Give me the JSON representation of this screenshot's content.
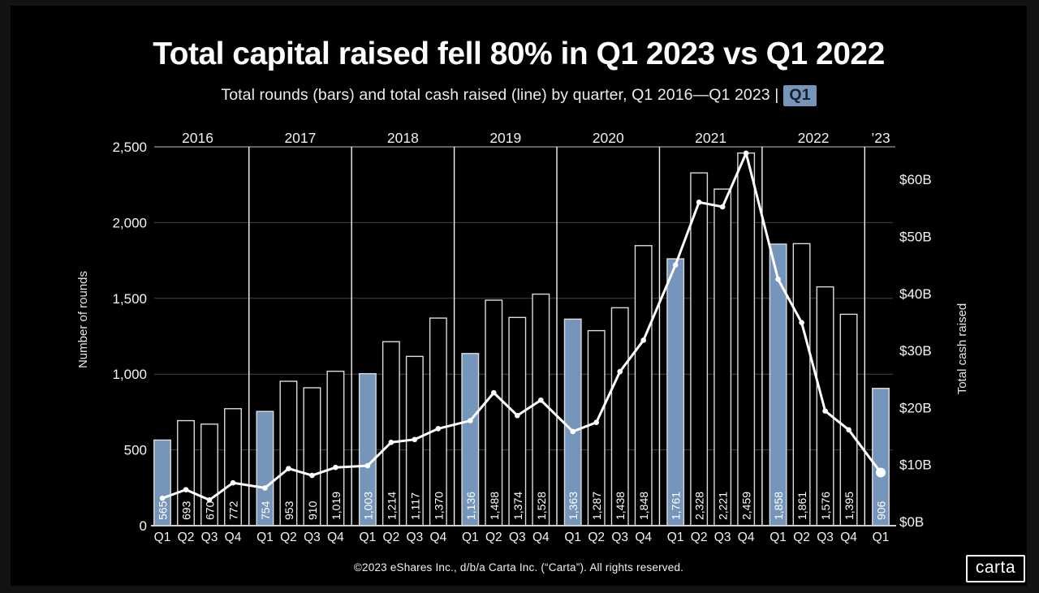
{
  "slide": {
    "title": "Total capital raised fell 80% in Q1 2023 vs Q1 2022",
    "subtitle_prefix": "Total rounds (bars) and total cash raised (line) by quarter, Q1 2016—Q1 2023 |",
    "subtitle_chip": "Q1",
    "footer": "©2023 eShares Inc., d/b/a Carta Inc. (“Carta”). All rights reserved.",
    "logo_text": "carta"
  },
  "colors": {
    "background": "#000000",
    "accent_blue": "#7695BA",
    "chip_text": "#15212F",
    "line": "#FFFFFF",
    "bar_fill": "#000000",
    "bar_stroke": "#DCDCDC",
    "gridline": "#454545",
    "top_gridline": "#9A9A9A",
    "separator": "#F5F5F5",
    "baseline": "#D0D0D0",
    "tick_text": "#F5F5F5",
    "axis_title_text": "#E5E5E5"
  },
  "chart_data": {
    "type": "bar+line",
    "title": "Total capital raised fell 80% in Q1 2023 vs Q1 2022",
    "subtitle": "Total rounds (bars) and total cash raised (line) by quarter, Q1 2016—Q1 2023",
    "highlighted_quarter": "Q1",
    "legend_position": "none",
    "left_axis": {
      "label": "Number of rounds",
      "ticks": [
        "0",
        "500",
        "1,000",
        "1,500",
        "2,000",
        "2,500"
      ],
      "range": [
        0,
        2500
      ],
      "grid": true
    },
    "right_axis": {
      "label": "Total cash raised",
      "ticks": [
        "$0B",
        "$10B",
        "$20B",
        "$30B",
        "$40B",
        "$50B",
        "$60B"
      ],
      "range": [
        0,
        60
      ]
    },
    "series": [
      {
        "name": "Total rounds",
        "type": "bar"
      },
      {
        "name": "Total cash raised",
        "type": "line",
        "unit": "$B"
      }
    ],
    "years": [
      {
        "label": "2016",
        "quarters": [
          {
            "label": "Q1",
            "rounds": 565,
            "rounds_label": "565",
            "cash_b": 4.1,
            "highlight": true
          },
          {
            "label": "Q2",
            "rounds": 693,
            "rounds_label": "693",
            "cash_b": 5.6,
            "highlight": false
          },
          {
            "label": "Q3",
            "rounds": 670,
            "rounds_label": "670",
            "cash_b": 3.8,
            "highlight": false
          },
          {
            "label": "Q4",
            "rounds": 772,
            "rounds_label": "772",
            "cash_b": 6.8,
            "highlight": false
          }
        ]
      },
      {
        "label": "2017",
        "quarters": [
          {
            "label": "Q1",
            "rounds": 754,
            "rounds_label": "754",
            "cash_b": 5.9,
            "highlight": true
          },
          {
            "label": "Q2",
            "rounds": 953,
            "rounds_label": "953",
            "cash_b": 9.3,
            "highlight": false
          },
          {
            "label": "Q3",
            "rounds": 910,
            "rounds_label": "910",
            "cash_b": 8.1,
            "highlight": false
          },
          {
            "label": "Q4",
            "rounds": 1019,
            "rounds_label": "1,019",
            "cash_b": 9.5,
            "highlight": false
          }
        ]
      },
      {
        "label": "2018",
        "quarters": [
          {
            "label": "Q1",
            "rounds": 1003,
            "rounds_label": "1,003",
            "cash_b": 9.8,
            "highlight": true
          },
          {
            "label": "Q2",
            "rounds": 1214,
            "rounds_label": "1,214",
            "cash_b": 13.9,
            "highlight": false
          },
          {
            "label": "Q3",
            "rounds": 1117,
            "rounds_label": "1,117",
            "cash_b": 14.4,
            "highlight": false
          },
          {
            "label": "Q4",
            "rounds": 1370,
            "rounds_label": "1,370",
            "cash_b": 16.3,
            "highlight": false
          }
        ]
      },
      {
        "label": "2019",
        "quarters": [
          {
            "label": "Q1",
            "rounds": 1136,
            "rounds_label": "1,136",
            "cash_b": 17.7,
            "highlight": true
          },
          {
            "label": "Q2",
            "rounds": 1488,
            "rounds_label": "1,488",
            "cash_b": 22.6,
            "highlight": false
          },
          {
            "label": "Q3",
            "rounds": 1374,
            "rounds_label": "1,374",
            "cash_b": 18.6,
            "highlight": false
          },
          {
            "label": "Q4",
            "rounds": 1528,
            "rounds_label": "1,528",
            "cash_b": 21.3,
            "highlight": false
          }
        ]
      },
      {
        "label": "2020",
        "quarters": [
          {
            "label": "Q1",
            "rounds": 1363,
            "rounds_label": "1,363",
            "cash_b": 15.8,
            "highlight": true
          },
          {
            "label": "Q2",
            "rounds": 1287,
            "rounds_label": "1,287",
            "cash_b": 17.4,
            "highlight": false
          },
          {
            "label": "Q3",
            "rounds": 1438,
            "rounds_label": "1,438",
            "cash_b": 26.3,
            "highlight": false
          },
          {
            "label": "Q4",
            "rounds": 1848,
            "rounds_label": "1,848",
            "cash_b": 31.8,
            "highlight": false
          }
        ]
      },
      {
        "label": "2021",
        "quarters": [
          {
            "label": "Q1",
            "rounds": 1761,
            "rounds_label": "1,761",
            "cash_b": 45.0,
            "highlight": true
          },
          {
            "label": "Q2",
            "rounds": 2328,
            "rounds_label": "2,328",
            "cash_b": 56.0,
            "highlight": false
          },
          {
            "label": "Q3",
            "rounds": 2221,
            "rounds_label": "2,221",
            "cash_b": 55.2,
            "highlight": false
          },
          {
            "label": "Q4",
            "rounds": 2459,
            "rounds_label": "2,459",
            "cash_b": 64.6,
            "highlight": false
          }
        ]
      },
      {
        "label": "2022",
        "quarters": [
          {
            "label": "Q1",
            "rounds": 1858,
            "rounds_label": "1,858",
            "cash_b": 42.5,
            "highlight": true
          },
          {
            "label": "Q2",
            "rounds": 1861,
            "rounds_label": "1,861",
            "cash_b": 34.9,
            "highlight": false
          },
          {
            "label": "Q3",
            "rounds": 1576,
            "rounds_label": "1,576",
            "cash_b": 19.4,
            "highlight": false
          },
          {
            "label": "Q4",
            "rounds": 1395,
            "rounds_label": "1,395",
            "cash_b": 16.1,
            "highlight": false
          }
        ]
      },
      {
        "label": "’23",
        "quarters": [
          {
            "label": "Q1",
            "rounds": 906,
            "rounds_label": "906",
            "cash_b": 8.6,
            "highlight": true
          }
        ]
      }
    ]
  }
}
